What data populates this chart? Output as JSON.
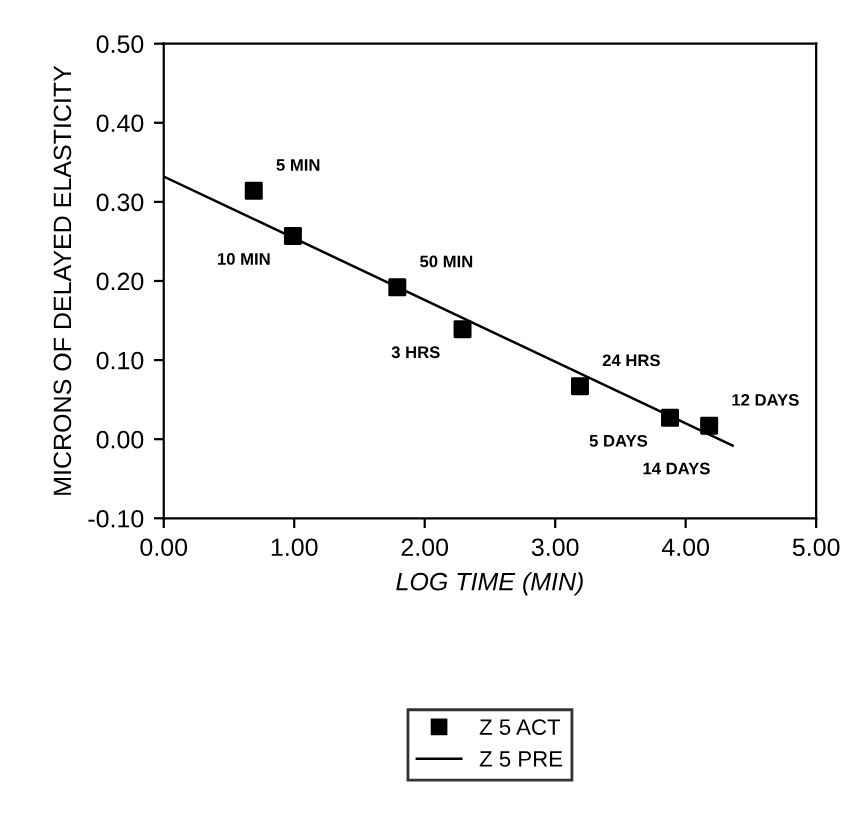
{
  "chart_data": {
    "type": "scatter",
    "xlabel": "LOG TIME (MIN)",
    "ylabel": "MICRONS OF DELAYED ELASTICITY",
    "xlim": [
      0,
      5
    ],
    "xticks": [
      {
        "value": 0,
        "label": "0.00"
      },
      {
        "value": 1,
        "label": "1.00"
      },
      {
        "value": 2,
        "label": "2.00"
      },
      {
        "value": 3,
        "label": "3.00"
      },
      {
        "value": 4,
        "label": "4.00"
      },
      {
        "value": 5,
        "label": "5.00"
      }
    ],
    "ylim": [
      -0.1,
      0.5
    ],
    "yticks": [
      {
        "value": 0.5,
        "label": "0.50"
      },
      {
        "value": 0.4,
        "label": "0.40"
      },
      {
        "value": 0.3,
        "label": "0.30"
      },
      {
        "value": 0.2,
        "label": "0.20"
      },
      {
        "value": 0.1,
        "label": "0.10"
      },
      {
        "value": 0.0,
        "label": "0.00"
      },
      {
        "value": -0.1,
        "label": "-0.10"
      }
    ],
    "series": [
      {
        "name": "Z 5 ACT",
        "marker": "square",
        "color": "#000000",
        "x": [
          0.69,
          0.99,
          1.79,
          2.29,
          3.19,
          3.88,
          4.18
        ],
        "values": [
          0.314,
          0.257,
          0.192,
          0.139,
          0.067,
          0.027,
          0.017
        ]
      },
      {
        "name": "Z 5 PRE",
        "type": "line",
        "marker": "none",
        "line_style": "solid",
        "color": "#000000",
        "x": [
          0,
          4.36
        ],
        "values": [
          0.332,
          -0.008
        ]
      }
    ],
    "annotations": [
      {
        "text": "5 MIN",
        "x": 0.69,
        "y": 0.314
      },
      {
        "text": "10 MIN",
        "x": 0.99,
        "y": 0.257
      },
      {
        "text": "50 MIN",
        "x": 1.79,
        "y": 0.192
      },
      {
        "text": "3 HRS",
        "x": 2.29,
        "y": 0.139
      },
      {
        "text": "24 HRS",
        "x": 3.19,
        "y": 0.067
      },
      {
        "text": "5 DAYS",
        "x": 3.88,
        "y": 0.027
      },
      {
        "text": "12 DAYS",
        "x": 4.18,
        "y": 0.017
      },
      {
        "text": "14 DAYS",
        "x": 4.36,
        "y": -0.008
      }
    ],
    "legend": "bottom",
    "grid": false
  }
}
